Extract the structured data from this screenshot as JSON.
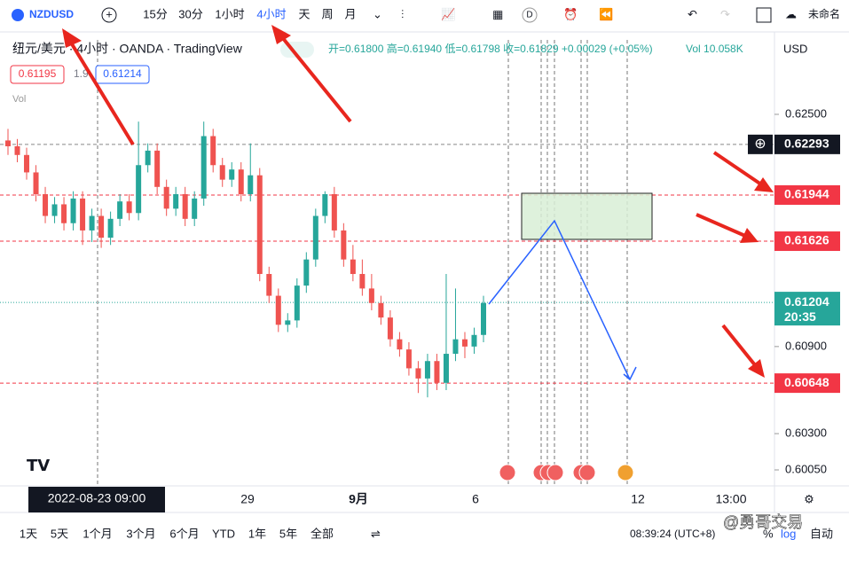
{
  "toolbar": {
    "symbol": "NZDUSD",
    "intervals": [
      "15分",
      "30分",
      "1小时",
      "4小时",
      "天",
      "周",
      "月"
    ],
    "active_interval": 3,
    "layout_name": "未命名",
    "d_button": "D"
  },
  "legend": {
    "title": "纽元/美元 · 4小时 · OANDA · TradingView",
    "ohlc": "开=0.61800 高=0.61940 低=0.61798 收=0.61829 +0.00029 (+0.05%)",
    "volume": "Vol 10.058K",
    "bid": "0.61195",
    "spread": "1.9",
    "ask": "0.61214",
    "vol_label": "Vol"
  },
  "chart_data": {
    "type": "candlestick",
    "currency": "USD",
    "ylim": [
      0.5994,
      0.63013
    ],
    "yticks": [
      {
        "value": 0.625,
        "label": "0.62500"
      },
      {
        "value": 0.609,
        "label": "0.60900"
      },
      {
        "value": 0.603,
        "label": "0.60300"
      },
      {
        "value": 0.6005,
        "label": "0.60050"
      }
    ],
    "up_color": "#26a69a",
    "down_color": "#ef5350",
    "candles": [
      [
        0.6232,
        0.624,
        0.6222,
        0.6228
      ],
      [
        0.6228,
        0.6233,
        0.6217,
        0.6222
      ],
      [
        0.6222,
        0.6227,
        0.6205,
        0.621
      ],
      [
        0.621,
        0.6215,
        0.619,
        0.6195
      ],
      [
        0.6195,
        0.62,
        0.6175,
        0.618
      ],
      [
        0.618,
        0.6193,
        0.6175,
        0.6188
      ],
      [
        0.6188,
        0.6193,
        0.617,
        0.6175
      ],
      [
        0.6175,
        0.6197,
        0.617,
        0.6192
      ],
      [
        0.6192,
        0.6197,
        0.616,
        0.617
      ],
      [
        0.617,
        0.6185,
        0.6162,
        0.618
      ],
      [
        0.618,
        0.6185,
        0.6158,
        0.6165
      ],
      [
        0.6165,
        0.6183,
        0.616,
        0.6178
      ],
      [
        0.6178,
        0.6195,
        0.6173,
        0.619
      ],
      [
        0.619,
        0.6195,
        0.6177,
        0.6182
      ],
      [
        0.6182,
        0.6245,
        0.6177,
        0.6215
      ],
      [
        0.6215,
        0.623,
        0.621,
        0.6225
      ],
      [
        0.6225,
        0.623,
        0.6195,
        0.62
      ],
      [
        0.62,
        0.6205,
        0.618,
        0.6185
      ],
      [
        0.6185,
        0.62,
        0.618,
        0.6195
      ],
      [
        0.6195,
        0.62,
        0.6173,
        0.6178
      ],
      [
        0.6178,
        0.6197,
        0.6173,
        0.6192
      ],
      [
        0.6192,
        0.6245,
        0.6187,
        0.6235
      ],
      [
        0.6235,
        0.624,
        0.621,
        0.6215
      ],
      [
        0.6215,
        0.622,
        0.62,
        0.6205
      ],
      [
        0.6205,
        0.6217,
        0.62,
        0.6212
      ],
      [
        0.6212,
        0.6217,
        0.619,
        0.6195
      ],
      [
        0.6195,
        0.623,
        0.619,
        0.6208
      ],
      [
        0.6208,
        0.6213,
        0.6135,
        0.614
      ],
      [
        0.614,
        0.6145,
        0.612,
        0.6125
      ],
      [
        0.6125,
        0.613,
        0.61,
        0.6105
      ],
      [
        0.6105,
        0.6113,
        0.61,
        0.6108
      ],
      [
        0.6108,
        0.6137,
        0.6103,
        0.6132
      ],
      [
        0.6132,
        0.6155,
        0.6127,
        0.615
      ],
      [
        0.615,
        0.6185,
        0.6145,
        0.618
      ],
      [
        0.618,
        0.6197,
        0.6175,
        0.6195
      ],
      [
        0.6195,
        0.62,
        0.6165,
        0.617
      ],
      [
        0.617,
        0.6175,
        0.6145,
        0.615
      ],
      [
        0.615,
        0.616,
        0.6135,
        0.614
      ],
      [
        0.614,
        0.615,
        0.6125,
        0.613
      ],
      [
        0.613,
        0.614,
        0.6115,
        0.612
      ],
      [
        0.612,
        0.6125,
        0.6105,
        0.611
      ],
      [
        0.611,
        0.6115,
        0.609,
        0.6095
      ],
      [
        0.6095,
        0.61,
        0.6083,
        0.6088
      ],
      [
        0.6088,
        0.6093,
        0.607,
        0.6075
      ],
      [
        0.6075,
        0.608,
        0.6058,
        0.6068
      ],
      [
        0.6068,
        0.6085,
        0.6055,
        0.608
      ],
      [
        0.608,
        0.6085,
        0.606,
        0.6065
      ],
      [
        0.6065,
        0.614,
        0.606,
        0.6085
      ],
      [
        0.6085,
        0.613,
        0.608,
        0.6095
      ],
      [
        0.6095,
        0.61,
        0.6082,
        0.609
      ],
      [
        0.609,
        0.6103,
        0.6085,
        0.6098
      ],
      [
        0.6098,
        0.6125,
        0.6093,
        0.612
      ]
    ],
    "price_lines": [
      {
        "value": 0.62293,
        "color": "#131722"
      },
      {
        "value": 0.61944,
        "color": "#f23645"
      },
      {
        "value": 0.61626,
        "color": "#f23645"
      },
      {
        "value": 0.60648,
        "color": "#f23645"
      }
    ],
    "last_price": {
      "value": 0.61204,
      "countdown": "20:35",
      "color": "#26a69a"
    },
    "x_labels": [
      "29",
      "9月",
      "6",
      "12",
      "13:00"
    ],
    "crosshair_date": "2022-08-23   09:00"
  },
  "bottom_bar": {
    "ranges": [
      "1天",
      "5天",
      "1个月",
      "3个月",
      "6个月",
      "YTD",
      "1年",
      "5年",
      "全部"
    ],
    "clock": "08:39:24 (UTC+8)",
    "percent": "%",
    "log": "log",
    "auto": "自动"
  },
  "watermark": "@勇哥交易"
}
